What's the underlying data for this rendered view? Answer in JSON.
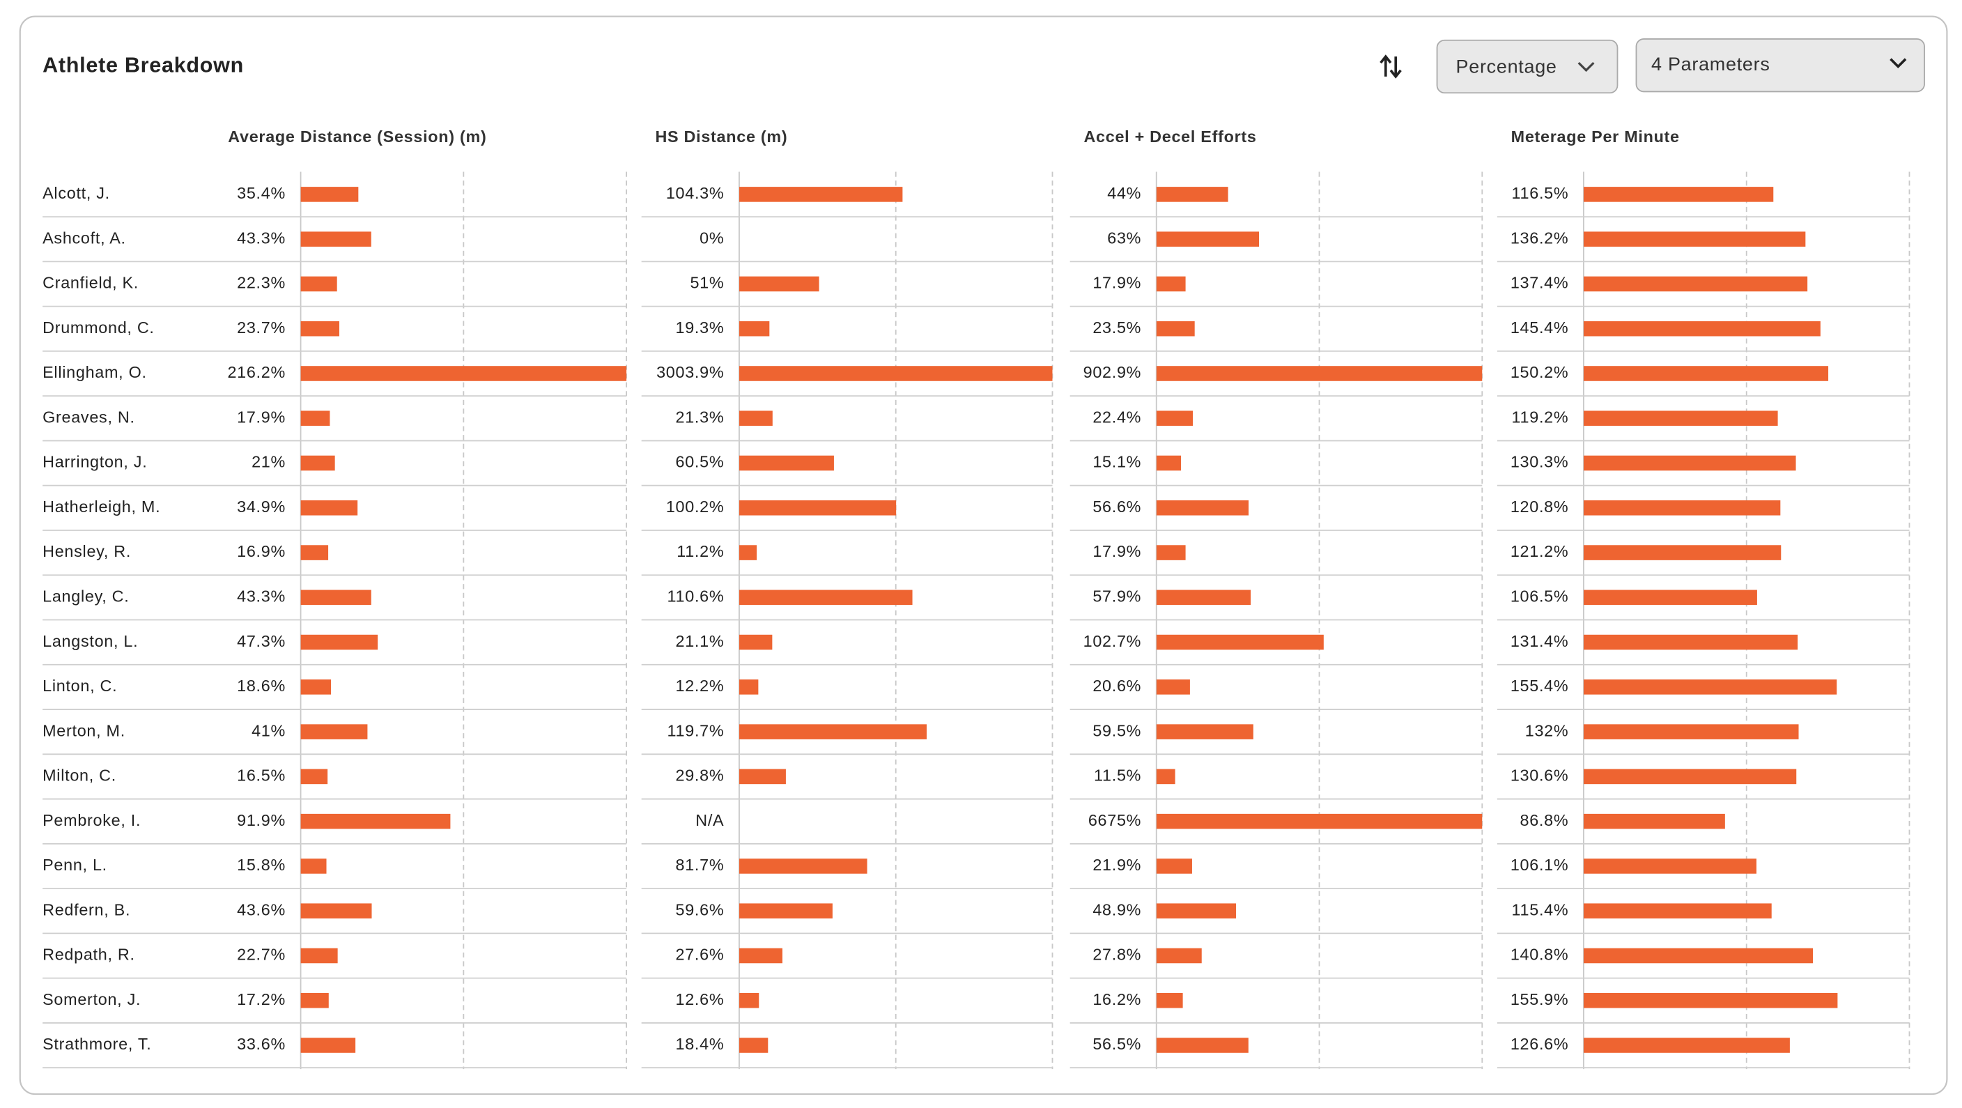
{
  "header": {
    "title": "Athlete Breakdown",
    "mode": "Percentage",
    "parameters": "4 Parameters"
  },
  "table": {
    "athletes": [
      "Alcott, J.",
      "Ashcoft, A.",
      "Cranfield, K.",
      "Drummond, C.",
      "Ellingham, O.",
      "Greaves, N.",
      "Harrington, J.",
      "Hatherleigh, M.",
      "Hensley, R.",
      "Langley, C.",
      "Langston, L.",
      "Linton, C.",
      "Merton, M.",
      "Milton, C.",
      "Pembroke, I.",
      "Penn, L.",
      "Redfern, B.",
      "Redpath, R.",
      "Somerton, J.",
      "Strathmore, T."
    ],
    "columns": [
      {
        "name": "Average Distance (Session) (m)",
        "color": "#ee6431",
        "xlim": [
          0,
          200
        ],
        "xticks": [
          0,
          100,
          200
        ],
        "values": [
          35.4,
          43.3,
          22.3,
          23.7,
          216.2,
          17.9,
          21,
          34.9,
          16.9,
          43.3,
          47.3,
          18.6,
          41,
          16.5,
          91.9,
          15.8,
          43.6,
          22.7,
          17.2,
          33.6
        ],
        "value_labels": [
          "35.4%",
          "43.3%",
          "22.3%",
          "23.7%",
          "216.2%",
          "17.9%",
          "21%",
          "34.9%",
          "16.9%",
          "43.3%",
          "47.3%",
          "18.6%",
          "41%",
          "16.5%",
          "91.9%",
          "15.8%",
          "43.6%",
          "22.7%",
          "17.2%",
          "33.6%"
        ]
      },
      {
        "name": "HS Distance (m)",
        "color": "#ee6431",
        "xlim": [
          0,
          200
        ],
        "xticks": [
          0,
          100,
          200
        ],
        "values": [
          104.3,
          0,
          51,
          19.3,
          3003.9,
          21.3,
          60.5,
          100.2,
          11.2,
          110.6,
          21.1,
          12.2,
          119.7,
          29.8,
          null,
          81.7,
          59.6,
          27.6,
          12.6,
          18.4
        ],
        "value_labels": [
          "104.3%",
          "0%",
          "51%",
          "19.3%",
          "3003.9%",
          "21.3%",
          "60.5%",
          "100.2%",
          "11.2%",
          "110.6%",
          "21.1%",
          "12.2%",
          "119.7%",
          "29.8%",
          "N/A",
          "81.7%",
          "59.6%",
          "27.6%",
          "12.6%",
          "18.4%"
        ]
      },
      {
        "name": "Accel + Decel Efforts",
        "color": "#ee6431",
        "xlim": [
          0,
          200
        ],
        "xticks": [
          0,
          100,
          200
        ],
        "values": [
          44,
          63,
          17.9,
          23.5,
          902.9,
          22.4,
          15.1,
          56.6,
          17.9,
          57.9,
          102.7,
          20.6,
          59.5,
          11.5,
          6675,
          21.9,
          48.9,
          27.8,
          16.2,
          56.5
        ],
        "value_labels": [
          "44%",
          "63%",
          "17.9%",
          "23.5%",
          "902.9%",
          "22.4%",
          "15.1%",
          "56.6%",
          "17.9%",
          "57.9%",
          "102.7%",
          "20.6%",
          "59.5%",
          "11.5%",
          "6675%",
          "21.9%",
          "48.9%",
          "27.8%",
          "16.2%",
          "56.5%"
        ]
      },
      {
        "name": "Meterage Per Minute",
        "color": "#ee6431",
        "xlim": [
          0,
          200
        ],
        "xticks": [
          0,
          100,
          200
        ],
        "values": [
          116.5,
          136.2,
          137.4,
          145.4,
          150.2,
          119.2,
          130.3,
          120.8,
          121.2,
          106.5,
          131.4,
          155.4,
          132,
          130.6,
          86.8,
          106.1,
          115.4,
          140.8,
          155.9,
          126.6
        ],
        "value_labels": [
          "116.5%",
          "136.2%",
          "137.4%",
          "145.4%",
          "150.2%",
          "119.2%",
          "130.3%",
          "120.8%",
          "121.2%",
          "106.5%",
          "131.4%",
          "155.4%",
          "132%",
          "130.6%",
          "86.8%",
          "106.1%",
          "115.4%",
          "140.8%",
          "155.9%",
          "126.6%"
        ]
      }
    ]
  }
}
